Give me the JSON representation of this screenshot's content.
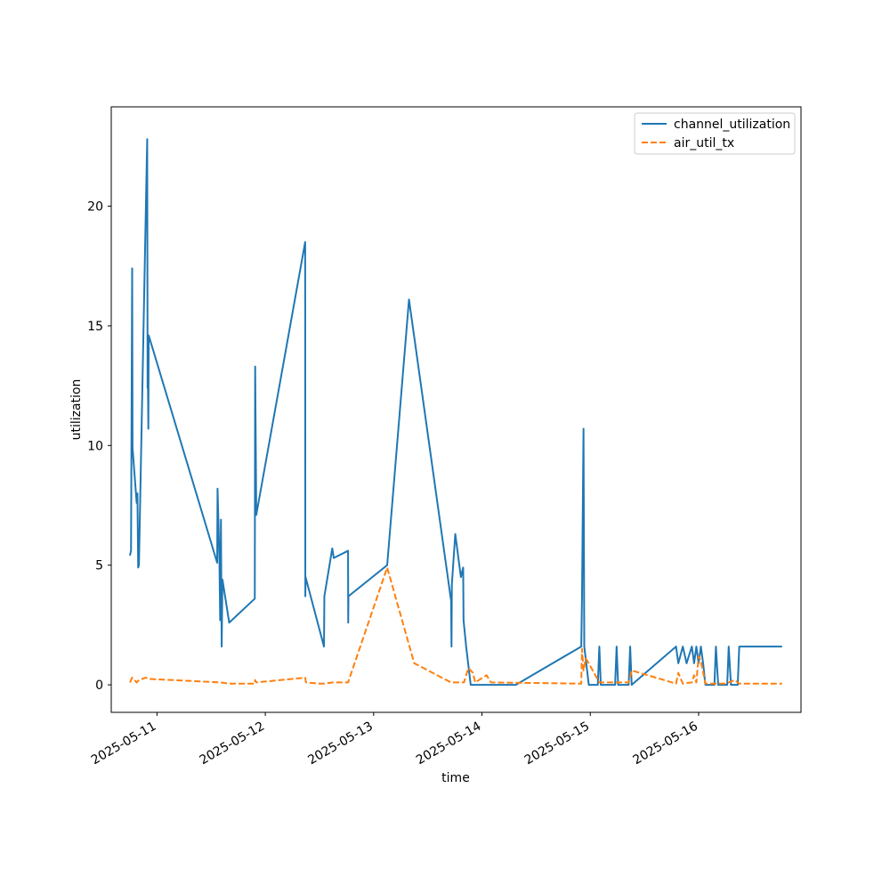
{
  "chart_data": {
    "type": "line",
    "title": "",
    "xlabel": "time",
    "ylabel": "utilization",
    "x_ticks": [
      "2025-05-11",
      "2025-05-12",
      "2025-05-13",
      "2025-05-14",
      "2025-05-15",
      "2025-05-16"
    ],
    "y_ticks": [
      0,
      5,
      10,
      15,
      20
    ],
    "xlim": [
      "2025-05-10T13:52",
      "2025-05-16T22:41"
    ],
    "ylim": [
      -1.15,
      24.15
    ],
    "grid": false,
    "legend_position": "top-right",
    "series": [
      {
        "name": "channel_utilization",
        "color": "#1f77b4",
        "dash": "solid",
        "points": [
          [
            "2025-05-10T18:00",
            5.4
          ],
          [
            "2025-05-10T18:15",
            5.6
          ],
          [
            "2025-05-10T18:30",
            17.4
          ],
          [
            "2025-05-10T18:35",
            9.9
          ],
          [
            "2025-05-10T19:30",
            7.6
          ],
          [
            "2025-05-10T19:40",
            8.0
          ],
          [
            "2025-05-10T19:50",
            4.9
          ],
          [
            "2025-05-10T20:00",
            5.0
          ],
          [
            "2025-05-10T21:50",
            22.8
          ],
          [
            "2025-05-10T21:55",
            12.4
          ],
          [
            "2025-05-10T22:00",
            12.6
          ],
          [
            "2025-05-10T22:05",
            10.7
          ],
          [
            "2025-05-10T22:10",
            14.6
          ],
          [
            "2025-05-11T13:20",
            5.1
          ],
          [
            "2025-05-11T13:25",
            8.2
          ],
          [
            "2025-05-11T13:50",
            5.2
          ],
          [
            "2025-05-11T14:00",
            2.7
          ],
          [
            "2025-05-11T14:10",
            6.9
          ],
          [
            "2025-05-11T14:20",
            1.6
          ],
          [
            "2025-05-11T14:30",
            4.4
          ],
          [
            "2025-05-11T16:00",
            2.6
          ],
          [
            "2025-05-11T21:40",
            3.6
          ],
          [
            "2025-05-11T21:45",
            13.3
          ],
          [
            "2025-05-11T22:00",
            7.1
          ],
          [
            "2025-05-12T08:50",
            18.5
          ],
          [
            "2025-05-12T08:52",
            3.7
          ],
          [
            "2025-05-12T08:55",
            4.5
          ],
          [
            "2025-05-12T13:00",
            1.6
          ],
          [
            "2025-05-12T13:05",
            3.7
          ],
          [
            "2025-05-12T14:50",
            5.7
          ],
          [
            "2025-05-12T15:10",
            5.3
          ],
          [
            "2025-05-12T18:20",
            5.6
          ],
          [
            "2025-05-12T18:22",
            2.6
          ],
          [
            "2025-05-12T18:25",
            3.7
          ],
          [
            "2025-05-13T03:00",
            5.0
          ],
          [
            "2025-05-13T07:50",
            16.1
          ],
          [
            "2025-05-13T17:10",
            3.5
          ],
          [
            "2025-05-13T17:15",
            1.6
          ],
          [
            "2025-05-13T17:20",
            4.2
          ],
          [
            "2025-05-13T18:05",
            6.3
          ],
          [
            "2025-05-13T19:20",
            4.5
          ],
          [
            "2025-05-13T19:50",
            4.9
          ],
          [
            "2025-05-13T19:55",
            2.7
          ],
          [
            "2025-05-13T20:30",
            1.6
          ],
          [
            "2025-05-13T21:30",
            0.0
          ],
          [
            "2025-05-14T07:30",
            0.0
          ],
          [
            "2025-05-14T22:00",
            1.6
          ],
          [
            "2025-05-14T22:10",
            3.7
          ],
          [
            "2025-05-14T22:30",
            10.7
          ],
          [
            "2025-05-14T22:40",
            1.6
          ],
          [
            "2025-05-14T23:40",
            0.0
          ],
          [
            "2025-05-15T01:40",
            0.0
          ],
          [
            "2025-05-15T02:00",
            1.6
          ],
          [
            "2025-05-15T02:20",
            0.0
          ],
          [
            "2025-05-15T05:30",
            0.0
          ],
          [
            "2025-05-15T05:50",
            1.6
          ],
          [
            "2025-05-15T06:10",
            0.0
          ],
          [
            "2025-05-15T08:30",
            0.0
          ],
          [
            "2025-05-15T08:50",
            1.6
          ],
          [
            "2025-05-15T09:10",
            0.0
          ],
          [
            "2025-05-15T19:00",
            1.6
          ],
          [
            "2025-05-15T19:30",
            0.9
          ],
          [
            "2025-05-15T20:30",
            1.6
          ],
          [
            "2025-05-15T21:20",
            0.9
          ],
          [
            "2025-05-15T22:30",
            1.6
          ],
          [
            "2025-05-15T23:00",
            0.9
          ],
          [
            "2025-05-15T23:30",
            1.6
          ],
          [
            "2025-05-16T00:00",
            0.9
          ],
          [
            "2025-05-16T00:30",
            1.6
          ],
          [
            "2025-05-16T01:00",
            0.9
          ],
          [
            "2025-05-16T01:30",
            0.0
          ],
          [
            "2025-05-16T03:30",
            0.0
          ],
          [
            "2025-05-16T03:50",
            1.6
          ],
          [
            "2025-05-16T04:20",
            0.0
          ],
          [
            "2025-05-16T06:20",
            0.0
          ],
          [
            "2025-05-16T06:40",
            1.6
          ],
          [
            "2025-05-16T07:10",
            0.0
          ],
          [
            "2025-05-16T08:40",
            0.0
          ],
          [
            "2025-05-16T09:00",
            1.6
          ],
          [
            "2025-05-16T18:30",
            1.6
          ]
        ]
      },
      {
        "name": "air_util_tx",
        "color": "#ff7f0e",
        "dash": "dashed",
        "points": [
          [
            "2025-05-10T18:00",
            0.1
          ],
          [
            "2025-05-10T18:30",
            0.3
          ],
          [
            "2025-05-10T19:30",
            0.1
          ],
          [
            "2025-05-10T20:00",
            0.2
          ],
          [
            "2025-05-10T21:30",
            0.3
          ],
          [
            "2025-05-10T22:00",
            0.25
          ],
          [
            "2025-05-11T14:00",
            0.1
          ],
          [
            "2025-05-11T16:00",
            0.05
          ],
          [
            "2025-05-11T21:40",
            0.05
          ],
          [
            "2025-05-11T21:45",
            0.2
          ],
          [
            "2025-05-11T22:00",
            0.1
          ],
          [
            "2025-05-12T08:50",
            0.3
          ],
          [
            "2025-05-12T09:00",
            0.1
          ],
          [
            "2025-05-12T12:00",
            0.05
          ],
          [
            "2025-05-12T13:05",
            0.05
          ],
          [
            "2025-05-12T15:00",
            0.1
          ],
          [
            "2025-05-12T18:20",
            0.1
          ],
          [
            "2025-05-13T03:00",
            4.9
          ],
          [
            "2025-05-13T09:00",
            0.9
          ],
          [
            "2025-05-13T17:10",
            0.1
          ],
          [
            "2025-05-13T20:00",
            0.1
          ],
          [
            "2025-05-13T21:00",
            0.7
          ],
          [
            "2025-05-13T22:00",
            0.5
          ],
          [
            "2025-05-13T22:30",
            0.1
          ],
          [
            "2025-05-14T01:00",
            0.4
          ],
          [
            "2025-05-14T02:00",
            0.1
          ],
          [
            "2025-05-14T22:00",
            0.05
          ],
          [
            "2025-05-14T22:10",
            1.5
          ],
          [
            "2025-05-14T22:30",
            0.6
          ],
          [
            "2025-05-14T23:00",
            1.1
          ],
          [
            "2025-05-14T23:40",
            0.9
          ],
          [
            "2025-05-15T02:00",
            0.1
          ],
          [
            "2025-05-15T08:30",
            0.1
          ],
          [
            "2025-05-15T09:10",
            0.6
          ],
          [
            "2025-05-15T19:00",
            0.05
          ],
          [
            "2025-05-15T19:30",
            0.5
          ],
          [
            "2025-05-15T20:30",
            0.05
          ],
          [
            "2025-05-15T22:30",
            0.1
          ],
          [
            "2025-05-15T23:00",
            0.4
          ],
          [
            "2025-05-15T23:30",
            0.1
          ],
          [
            "2025-05-16T00:00",
            1.2
          ],
          [
            "2025-05-16T00:30",
            1.0
          ],
          [
            "2025-05-16T01:30",
            0.05
          ],
          [
            "2025-05-16T06:00",
            0.05
          ],
          [
            "2025-05-16T08:00",
            0.2
          ],
          [
            "2025-05-16T09:00",
            0.05
          ],
          [
            "2025-05-16T18:30",
            0.05
          ]
        ]
      }
    ]
  }
}
